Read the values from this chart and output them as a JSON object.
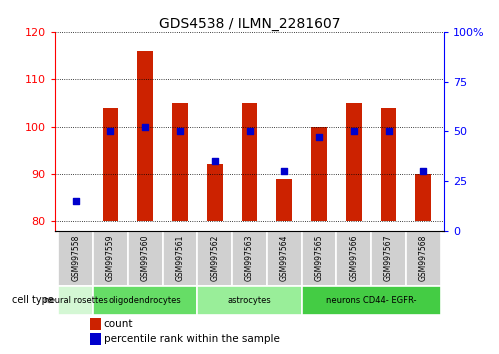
{
  "title": "GDS4538 / ILMN_2281607",
  "samples": [
    "GSM997558",
    "GSM997559",
    "GSM997560",
    "GSM997561",
    "GSM997562",
    "GSM997563",
    "GSM997564",
    "GSM997565",
    "GSM997566",
    "GSM997567",
    "GSM997568"
  ],
  "counts": [
    80,
    104,
    116,
    105,
    92,
    105,
    89,
    100,
    105,
    104,
    90
  ],
  "percentile_ranks": [
    15,
    50,
    52,
    50,
    35,
    50,
    30,
    47,
    50,
    50,
    30
  ],
  "ylim_left": [
    78,
    120
  ],
  "ylim_right": [
    0,
    100
  ],
  "yticks_left": [
    80,
    90,
    100,
    110,
    120
  ],
  "yticks_right": [
    0,
    25,
    50,
    75,
    100
  ],
  "cell_types": [
    {
      "label": "neural rosettes",
      "start": 0,
      "end": 1,
      "color": "#d4f7d4"
    },
    {
      "label": "oligodendrocytes",
      "start": 1,
      "end": 4,
      "color": "#66dd66"
    },
    {
      "label": "astrocytes",
      "start": 4,
      "end": 7,
      "color": "#99ee99"
    },
    {
      "label": "neurons CD44- EGFR-",
      "start": 7,
      "end": 11,
      "color": "#44cc44"
    }
  ],
  "bar_color": "#cc2200",
  "dot_color": "#0000cc",
  "bar_bottom": 80,
  "bg_color": "#ffffff",
  "sample_box_color": "#d0d0d0",
  "legend_count_color": "#cc2200",
  "legend_pct_color": "#0000cc"
}
